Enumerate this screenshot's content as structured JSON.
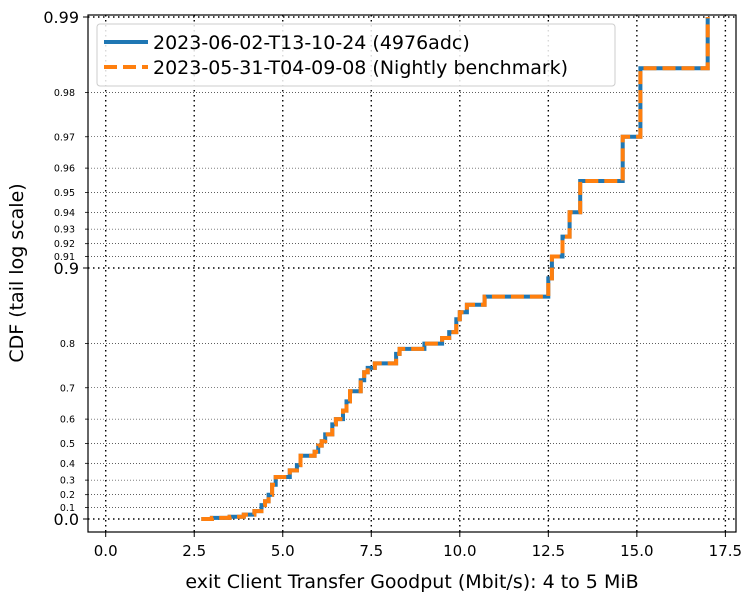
{
  "chart_data": {
    "type": "line",
    "xlabel": "exit Client Transfer Goodput (Mbit/s): 4 to 5 MiB",
    "ylabel": "CDF (tail log scale)",
    "xlim": [
      -0.5,
      17.8
    ],
    "y_scale": "tail log",
    "ylim": [
      0.0,
      0.99
    ],
    "x_ticks": [
      "0.0",
      "2.5",
      "5.0",
      "7.5",
      "10.0",
      "12.5",
      "15.0",
      "17.5"
    ],
    "x_tick_values": [
      0,
      2.5,
      5,
      7.5,
      10,
      12.5,
      15,
      17.5
    ],
    "y_major_ticks": [
      "0.0",
      "0.9",
      "0.99"
    ],
    "y_major_tick_values": [
      0.0,
      0.9,
      0.99
    ],
    "y_minor_ticks": [
      "0.1",
      "0.2",
      "0.3",
      "0.4",
      "0.5",
      "0.6",
      "0.7",
      "0.8",
      "0.91",
      "0.92",
      "0.93",
      "0.94",
      "0.95",
      "0.96",
      "0.97",
      "0.98"
    ],
    "y_minor_tick_values": [
      0.1,
      0.2,
      0.3,
      0.4,
      0.5,
      0.6,
      0.7,
      0.8,
      0.91,
      0.92,
      0.93,
      0.94,
      0.95,
      0.96,
      0.97,
      0.98
    ],
    "grid": true,
    "legend_position": "top-left",
    "series": [
      {
        "name": "2023-06-02-T13-10-24 (4976adc)",
        "color": "#1f77b4",
        "style": "solid",
        "x": [
          2.7,
          3.0,
          3.5,
          3.9,
          4.2,
          4.4,
          4.5,
          4.6,
          4.7,
          4.8,
          5.2,
          5.4,
          5.5,
          5.9,
          6.0,
          6.1,
          6.2,
          6.4,
          6.5,
          6.7,
          6.8,
          6.9,
          7.2,
          7.3,
          7.4,
          7.6,
          8.2,
          8.3,
          9.0,
          9.5,
          9.7,
          9.9,
          10.0,
          10.2,
          10.7,
          12.5,
          12.6,
          12.9,
          13.1,
          13.4,
          14.6,
          15.1,
          17.0
        ],
        "y": [
          0.0,
          0.01,
          0.02,
          0.04,
          0.07,
          0.12,
          0.15,
          0.2,
          0.27,
          0.32,
          0.36,
          0.39,
          0.44,
          0.46,
          0.49,
          0.51,
          0.54,
          0.58,
          0.6,
          0.63,
          0.66,
          0.69,
          0.72,
          0.74,
          0.75,
          0.76,
          0.78,
          0.79,
          0.8,
          0.81,
          0.82,
          0.84,
          0.85,
          0.86,
          0.87,
          0.89,
          0.91,
          0.925,
          0.94,
          0.955,
          0.97,
          0.984,
          0.99
        ]
      },
      {
        "name": "2023-05-31-T04-09-08 (Nightly benchmark)",
        "color": "#ff7f0e",
        "style": "dashed",
        "x": [
          2.7,
          3.0,
          3.5,
          3.9,
          4.2,
          4.4,
          4.5,
          4.6,
          4.7,
          4.8,
          5.2,
          5.4,
          5.5,
          5.9,
          6.0,
          6.1,
          6.2,
          6.4,
          6.5,
          6.7,
          6.8,
          6.9,
          7.2,
          7.3,
          7.4,
          7.6,
          8.2,
          8.3,
          9.0,
          9.5,
          9.7,
          9.9,
          10.0,
          10.2,
          10.7,
          12.5,
          12.6,
          12.9,
          13.1,
          13.4,
          14.6,
          15.1,
          17.0
        ],
        "y": [
          0.0,
          0.01,
          0.02,
          0.04,
          0.07,
          0.12,
          0.15,
          0.2,
          0.27,
          0.32,
          0.36,
          0.39,
          0.44,
          0.46,
          0.49,
          0.51,
          0.54,
          0.58,
          0.6,
          0.63,
          0.66,
          0.69,
          0.72,
          0.74,
          0.75,
          0.76,
          0.78,
          0.79,
          0.8,
          0.81,
          0.82,
          0.84,
          0.85,
          0.86,
          0.87,
          0.89,
          0.91,
          0.925,
          0.94,
          0.955,
          0.97,
          0.984,
          0.99
        ]
      }
    ]
  }
}
